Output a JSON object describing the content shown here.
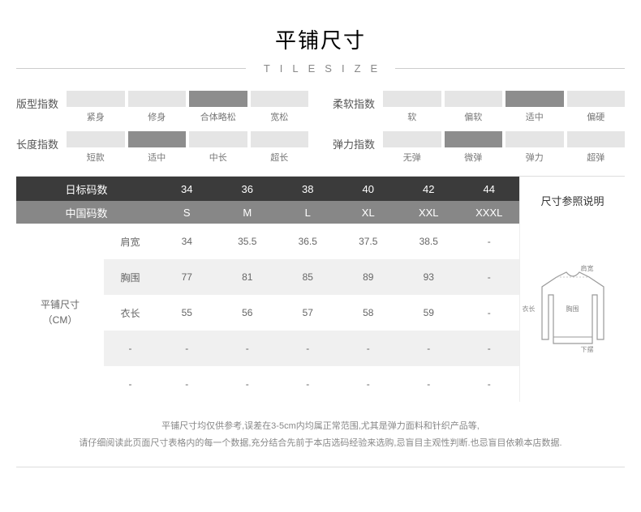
{
  "title": {
    "main": "平铺尺寸",
    "sub": "TILESIZE"
  },
  "indices": [
    {
      "label": "版型指数",
      "options": [
        "紧身",
        "修身",
        "合体略松",
        "宽松"
      ],
      "selected": 2,
      "colors": {
        "normal": "#e5e5e5",
        "selected": "#8d8d8d"
      },
      "font_size": 11
    },
    {
      "label": "柔软指数",
      "options": [
        "软",
        "偏软",
        "适中",
        "偏硬"
      ],
      "selected": 2,
      "colors": {
        "normal": "#e5e5e5",
        "selected": "#8d8d8d"
      },
      "font_size": 11
    },
    {
      "label": "长度指数",
      "options": [
        "短款",
        "适中",
        "中长",
        "超长"
      ],
      "selected": 1,
      "colors": {
        "normal": "#e5e5e5",
        "selected": "#8d8d8d"
      },
      "font_size": 11
    },
    {
      "label": "弹力指数",
      "options": [
        "无弹",
        "微弹",
        "弹力",
        "超弹"
      ],
      "selected": 1,
      "colors": {
        "normal": "#e5e5e5",
        "selected": "#8d8d8d"
      },
      "font_size": 11
    }
  ],
  "table": {
    "header_bg": "#3b3b3b",
    "subheader_bg": "#878787",
    "header_fg": "#ffffff",
    "row_even_bg": "#ffffff",
    "row_odd_bg": "#f0f0f0",
    "body_fg": "#666666",
    "font_size": 13,
    "header1_label": "日标码数",
    "header2_label": "中国码数",
    "jp_sizes": [
      "34",
      "36",
      "38",
      "40",
      "42",
      "44"
    ],
    "cn_sizes": [
      "S",
      "M",
      "L",
      "XL",
      "XXL",
      "XXXL"
    ],
    "left_label_line1": "平铺尺寸",
    "left_label_line2": "（CM）",
    "rows": [
      {
        "label": "肩宽",
        "values": [
          "34",
          "35.5",
          "36.5",
          "37.5",
          "38.5",
          "-"
        ]
      },
      {
        "label": "胸围",
        "values": [
          "77",
          "81",
          "85",
          "89",
          "93",
          "-"
        ]
      },
      {
        "label": "衣长",
        "values": [
          "55",
          "56",
          "57",
          "58",
          "59",
          "-"
        ]
      },
      {
        "label": "-",
        "values": [
          "-",
          "-",
          "-",
          "-",
          "-",
          "-"
        ]
      },
      {
        "label": "-",
        "values": [
          "-",
          "-",
          "-",
          "-",
          "-",
          "-"
        ]
      }
    ],
    "ref_title": "尺寸参照说明",
    "sweater": {
      "stroke": "#9a9a9a",
      "fill": "#ffffff",
      "labels": {
        "shoulder": "肩宽",
        "chest": "胸围",
        "length": "衣长",
        "hem": "下摆"
      }
    }
  },
  "footer": {
    "line1": "平铺尺寸均仅供参考,误差在3-5cm内均属正常范围,尤其是弹力面料和针织产品等,",
    "line2": "请仔细阅读此页面尺寸表格内的每一个数据,充分结合先前于本店选码经验来选购,忌盲目主观性判断.也忌盲目依赖本店数据."
  }
}
